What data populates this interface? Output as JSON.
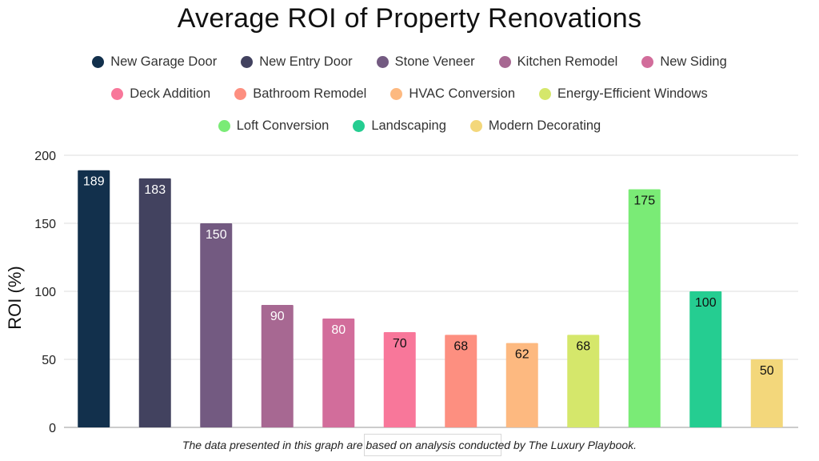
{
  "chart_data": {
    "type": "bar",
    "title": "Average ROI of Property Renovations",
    "ylabel": "ROI (%)",
    "xlabel": "",
    "ylim": [
      0,
      200
    ],
    "yticks": [
      0,
      50,
      100,
      150,
      200
    ],
    "grid": true,
    "legend_position": "top",
    "categories": [
      "New Garage Door",
      "New Entry Door",
      "Stone Veneer",
      "Kitchen Remodel",
      "New Siding",
      "Deck Addition",
      "Bathroom Remodel",
      "HVAC Conversion",
      "Energy-Efficient Windows",
      "Loft Conversion",
      "Landscaping",
      "Modern Decorating"
    ],
    "values": [
      189,
      183,
      150,
      90,
      80,
      70,
      68,
      62,
      68,
      175,
      100,
      50
    ],
    "colors": [
      "#12304c",
      "#42425f",
      "#735a81",
      "#a76892",
      "#d26d9b",
      "#f8779a",
      "#fd8f80",
      "#fdb980",
      "#d5e76b",
      "#7aeb76",
      "#25cd91",
      "#f3d77b"
    ],
    "label_colors": [
      "#ffffff",
      "#ffffff",
      "#ffffff",
      "#ffffff",
      "#ffffff",
      "#111111",
      "#111111",
      "#111111",
      "#111111",
      "#111111",
      "#111111",
      "#111111"
    ]
  },
  "footnote": "The data presented in this graph are based on analysis conducted by The Luxury Playbook."
}
